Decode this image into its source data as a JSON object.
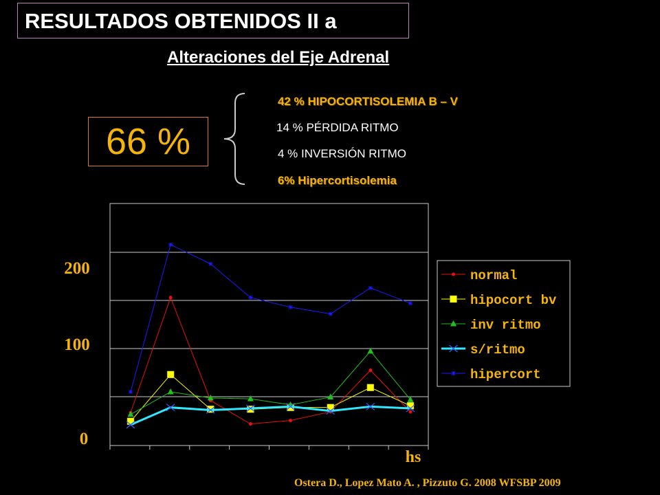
{
  "title": "RESULTADOS OBTENIDOS II a",
  "subtitle": "Alteraciones del Eje Adrenal",
  "total_percent": "66 %",
  "breakdown": [
    {
      "text": "42 %  HIPOCORTISOLEMIA B – V",
      "style": "bold"
    },
    {
      "text": "14 %  PÉRDIDA RITMO",
      "style": "plain"
    },
    {
      "text": " 4 %   INVERSIÓN RITMO",
      "style": "plain"
    },
    {
      "text": " 6%   Hipercortisolemia",
      "style": "bold"
    }
  ],
  "citation": "Ostera D., Lopez Mato A. , Pizzuto G. 2008 WFSBP 2009",
  "chart_data": {
    "type": "line",
    "title": "",
    "xlabel": "hs",
    "ylabel": "",
    "x": [
      1,
      2,
      3,
      4,
      5,
      6,
      7,
      8
    ],
    "ylim": [
      0,
      255
    ],
    "yticks": [
      0,
      100,
      200
    ],
    "ytick_labels": [
      "0",
      "100",
      "200"
    ],
    "grid": true,
    "legend_position": "right",
    "series": [
      {
        "name": "normal",
        "color": "#e81010",
        "marker": "dot",
        "values": [
          26,
          153,
          40,
          13,
          17,
          27,
          75,
          27
        ]
      },
      {
        "name": "hipocort bv",
        "color": "#ffff00",
        "marker": "square",
        "values": [
          16,
          70,
          30,
          30,
          32,
          32,
          55,
          34
        ]
      },
      {
        "name": "inv ritmo",
        "color": "#20c020",
        "marker": "triangle",
        "values": [
          24,
          50,
          43,
          42,
          35,
          44,
          97,
          41
        ]
      },
      {
        "name": "s/ritmo",
        "color": "#30e8ff",
        "marker": "x",
        "values": [
          12,
          32,
          29,
          31,
          33,
          28,
          33,
          31
        ]
      },
      {
        "name": "hipercort",
        "color": "#1a1aff",
        "marker": "star",
        "values": [
          50,
          208,
          188,
          153,
          143,
          136,
          163,
          147
        ]
      }
    ]
  }
}
